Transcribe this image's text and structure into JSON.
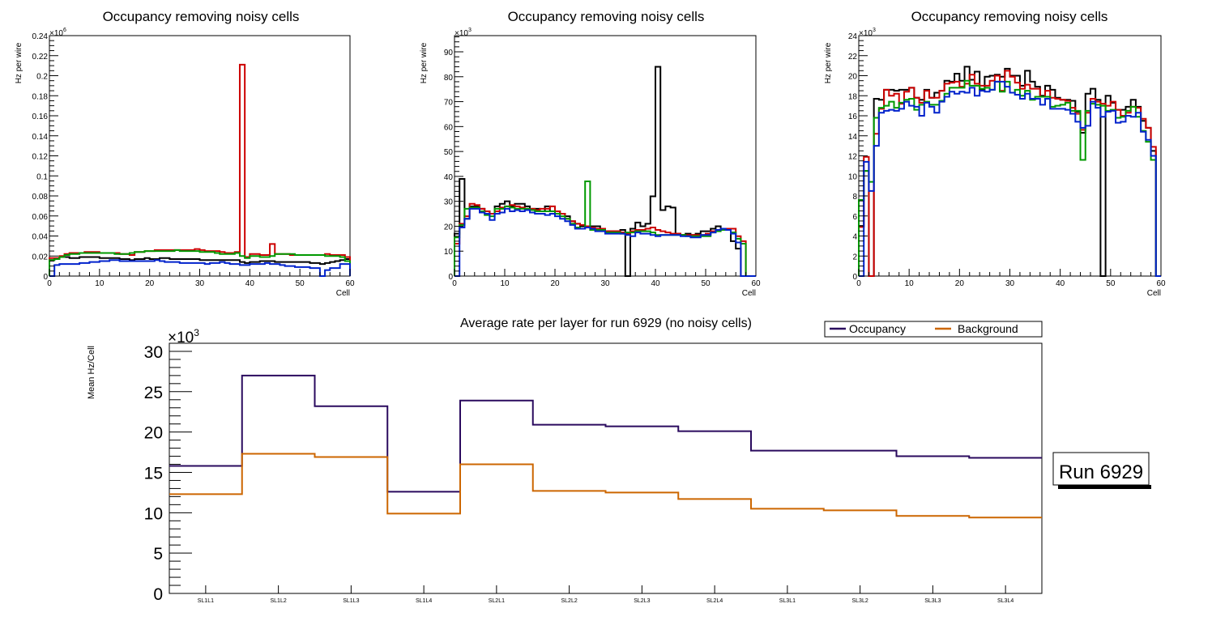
{
  "chart_data": [
    {
      "type": "bar",
      "histtype": "step",
      "title": "Occupancy removing noisy cells",
      "xlabel": "Cell",
      "ylabel": "Hz per wire",
      "yexponent": "×10^6",
      "xlim": [
        0,
        60
      ],
      "ylim": [
        0,
        0.24
      ],
      "xticks": [
        "0",
        "10",
        "20",
        "30",
        "40",
        "50",
        "60"
      ],
      "yticks": [
        "0",
        "0.02",
        "0.04",
        "0.06",
        "0.08",
        "0.1",
        "0.12",
        "0.14",
        "0.16",
        "0.18",
        "0.2",
        "0.22",
        "0.24"
      ],
      "ytick_values": [
        0,
        0.02,
        0.04,
        0.06,
        0.08,
        0.1,
        0.12,
        0.14,
        0.16,
        0.18,
        0.2,
        0.22,
        0.24
      ],
      "series": [
        {
          "name": "black",
          "color": "#000000",
          "values": [
            0.016,
            0.017,
            0.019,
            0.019,
            0.018,
            0.018,
            0.019,
            0.019,
            0.019,
            0.019,
            0.018,
            0.018,
            0.018,
            0.018,
            0.017,
            0.017,
            0.016,
            0.017,
            0.017,
            0.018,
            0.017,
            0.017,
            0.018,
            0.018,
            0.017,
            0.017,
            0.017,
            0.017,
            0.017,
            0.017,
            0.016,
            0.016,
            0.016,
            0.016,
            0.016,
            0.016,
            0.016,
            0.016,
            0.014,
            0.013,
            0.014,
            0.014,
            0.015,
            0.015,
            0.015,
            0.014,
            0.014,
            0.014,
            0.014,
            0.014,
            0.014,
            0.014,
            0.013,
            0.013,
            0.012,
            0.013,
            0.014,
            0.015,
            0.016,
            0.017
          ]
        },
        {
          "name": "red",
          "color": "#cc0000",
          "values": [
            0.018,
            0.018,
            0.02,
            0.022,
            0.023,
            0.023,
            0.023,
            0.024,
            0.024,
            0.024,
            0.023,
            0.023,
            0.023,
            0.023,
            0.022,
            0.022,
            0.021,
            0.024,
            0.024,
            0.025,
            0.025,
            0.026,
            0.026,
            0.026,
            0.026,
            0.026,
            0.026,
            0.026,
            0.026,
            0.027,
            0.026,
            0.025,
            0.025,
            0.025,
            0.024,
            0.023,
            0.023,
            0.024,
            0.211,
            0.019,
            0.022,
            0.022,
            0.021,
            0.021,
            0.032,
            0.022,
            0.022,
            0.022,
            0.021,
            0.021,
            0.021,
            0.021,
            0.021,
            0.021,
            0.021,
            0.022,
            0.021,
            0.021,
            0.021,
            0.019
          ]
        },
        {
          "name": "green",
          "color": "#009900",
          "values": [
            0.016,
            0.017,
            0.019,
            0.021,
            0.022,
            0.022,
            0.023,
            0.023,
            0.023,
            0.023,
            0.023,
            0.023,
            0.023,
            0.022,
            0.022,
            0.022,
            0.023,
            0.024,
            0.024,
            0.025,
            0.025,
            0.025,
            0.025,
            0.025,
            0.025,
            0.026,
            0.025,
            0.025,
            0.025,
            0.025,
            0.024,
            0.024,
            0.024,
            0.023,
            0.022,
            0.022,
            0.022,
            0.023,
            0.02,
            0.018,
            0.02,
            0.02,
            0.019,
            0.019,
            0.02,
            0.022,
            0.022,
            0.022,
            0.022,
            0.021,
            0.021,
            0.021,
            0.021,
            0.021,
            0.021,
            0.02,
            0.02,
            0.02,
            0.019,
            0.015
          ]
        },
        {
          "name": "blue",
          "color": "#0022cc",
          "values": [
            0.0,
            0.011,
            0.012,
            0.012,
            0.012,
            0.012,
            0.013,
            0.013,
            0.014,
            0.014,
            0.015,
            0.015,
            0.016,
            0.016,
            0.015,
            0.015,
            0.015,
            0.015,
            0.015,
            0.015,
            0.015,
            0.016,
            0.015,
            0.014,
            0.014,
            0.014,
            0.013,
            0.013,
            0.013,
            0.013,
            0.013,
            0.012,
            0.013,
            0.013,
            0.014,
            0.013,
            0.012,
            0.012,
            0.011,
            0.011,
            0.012,
            0.012,
            0.012,
            0.013,
            0.012,
            0.012,
            0.011,
            0.01,
            0.01,
            0.009,
            0.009,
            0.009,
            0.008,
            0.008,
            0.0,
            0.006,
            0.008,
            0.008,
            0.012,
            0.012
          ]
        }
      ]
    },
    {
      "type": "bar",
      "histtype": "step",
      "title": "Occupancy removing noisy cells",
      "xlabel": "Cell",
      "ylabel": "Hz per wire",
      "yexponent": "×10^3",
      "xlim": [
        0,
        60
      ],
      "ylim": [
        0,
        96.5
      ],
      "xticks": [
        "0",
        "10",
        "20",
        "30",
        "40",
        "50",
        "60"
      ],
      "yticks": [
        "0",
        "10",
        "20",
        "30",
        "40",
        "50",
        "60",
        "70",
        "80",
        "90"
      ],
      "ytick_values": [
        0,
        10,
        20,
        30,
        40,
        50,
        60,
        70,
        80,
        90
      ],
      "series": [
        {
          "name": "black",
          "color": "#000000",
          "values": [
            17,
            39,
            23,
            28,
            28,
            27,
            26,
            25,
            28,
            29,
            30,
            28,
            29,
            29,
            28,
            27,
            27,
            26,
            28,
            26,
            26,
            25,
            24,
            22,
            21,
            20,
            20,
            20,
            20,
            19,
            18,
            18,
            18,
            18.5,
            0,
            19,
            21.5,
            20,
            21,
            32,
            84,
            26.5,
            28,
            27.5,
            17,
            16.5,
            17,
            16.5,
            17,
            18,
            18,
            19,
            20,
            19,
            18.5,
            14,
            11,
            0,
            0,
            0
          ]
        },
        {
          "name": "red",
          "color": "#cc0000",
          "values": [
            13,
            21,
            24,
            29,
            28.5,
            27,
            26,
            25,
            26,
            27.5,
            28,
            28.5,
            28,
            27.5,
            27,
            27,
            26.5,
            27,
            27,
            28,
            26,
            25,
            23,
            22,
            21,
            20.5,
            20,
            19.5,
            19,
            19,
            18,
            18,
            18,
            17.5,
            17,
            18,
            18.5,
            18.5,
            19,
            19.5,
            18.5,
            18,
            17.5,
            17,
            17,
            16.5,
            16.5,
            16.5,
            16.5,
            16.5,
            17,
            18,
            18.5,
            19,
            19,
            19,
            16,
            14,
            0,
            0
          ]
        },
        {
          "name": "green",
          "color": "#009900",
          "values": [
            15.5,
            20.5,
            27,
            27.5,
            27.5,
            26,
            24.5,
            24,
            27,
            27,
            28,
            27.5,
            27,
            27,
            27,
            26.5,
            26,
            26,
            26,
            26,
            25,
            24,
            23,
            21,
            19.5,
            19,
            38,
            18.5,
            18.5,
            18.5,
            17.5,
            17.5,
            17.5,
            17,
            17.5,
            17.5,
            18,
            18,
            18,
            17.5,
            16.5,
            16.5,
            16.5,
            16.5,
            16.5,
            16.5,
            16,
            16,
            16,
            16,
            16,
            17.5,
            18,
            18.5,
            18.5,
            17.5,
            15,
            13,
            0,
            0
          ]
        },
        {
          "name": "blue",
          "color": "#0022cc",
          "values": [
            0,
            19.5,
            23,
            27,
            27,
            25.5,
            25,
            22.5,
            25,
            25.5,
            27,
            26,
            26.5,
            26,
            26.5,
            25.5,
            25,
            25,
            24.5,
            25,
            24,
            23,
            22,
            20.5,
            19,
            19,
            19.5,
            19,
            18,
            18,
            17,
            17,
            17,
            17,
            16.5,
            16,
            17.5,
            17,
            17,
            16.5,
            16,
            16.5,
            16.5,
            16.5,
            16.5,
            16,
            16,
            15.5,
            15.5,
            16.5,
            16.5,
            17.5,
            18.5,
            19,
            18.5,
            17,
            13.5,
            0,
            0,
            0
          ]
        }
      ]
    },
    {
      "type": "bar",
      "histtype": "step",
      "title": "Occupancy removing noisy cells",
      "xlabel": "Cell",
      "ylabel": "Hz per wire",
      "yexponent": "×10^3",
      "xlim": [
        0,
        60
      ],
      "ylim": [
        0,
        24
      ],
      "xticks": [
        "0",
        "10",
        "20",
        "30",
        "40",
        "50",
        "60"
      ],
      "yticks": [
        "0",
        "2",
        "4",
        "6",
        "8",
        "10",
        "12",
        "14",
        "16",
        "18",
        "20",
        "22",
        "24"
      ],
      "ytick_values": [
        0,
        2,
        4,
        6,
        8,
        10,
        12,
        14,
        16,
        18,
        20,
        22,
        24
      ],
      "series": [
        {
          "name": "black",
          "color": "#000000",
          "values": [
            5,
            10.5,
            0,
            17.7,
            17.6,
            18.6,
            18.6,
            18.5,
            18.6,
            18.6,
            18.8,
            17.8,
            17.6,
            18.6,
            17.8,
            18.3,
            18.5,
            19.5,
            19.4,
            20.2,
            19.5,
            20.9,
            19.6,
            20.4,
            18.6,
            19.9,
            20.0,
            20.1,
            19.9,
            20.7,
            20.0,
            20.0,
            19.0,
            20.5,
            19.4,
            18.9,
            18.0,
            19.0,
            18.6,
            17.8,
            17.6,
            17.6,
            17.5,
            16.4,
            14.3,
            18.2,
            18.7,
            17.6,
            0,
            18.0,
            17.3,
            16.6,
            16.6,
            16.9,
            17.6,
            16.9,
            15.5,
            14.8,
            12.5,
            0
          ]
        },
        {
          "name": "red",
          "color": "#cc0000",
          "values": [
            4.9,
            11.9,
            0,
            14.2,
            16.7,
            18.6,
            18.0,
            18.2,
            17.2,
            18.4,
            18.8,
            17.8,
            17.3,
            18.5,
            17.8,
            17.8,
            18.5,
            19.2,
            19.3,
            19.4,
            18.9,
            19.2,
            20.1,
            19.2,
            19.0,
            19.0,
            19.5,
            20.0,
            18.5,
            20.5,
            19.9,
            19.3,
            18.7,
            19.1,
            18.7,
            18.7,
            17.9,
            18.5,
            17.8,
            17.7,
            17.6,
            17.5,
            16.8,
            16.2,
            14.6,
            16.3,
            17.7,
            17.4,
            17.2,
            17.0,
            17.4,
            16.6,
            16.0,
            16.3,
            16.9,
            16.8,
            15.7,
            14.8,
            12.9,
            0
          ]
        },
        {
          "name": "green",
          "color": "#009900",
          "values": [
            7.6,
            10.5,
            9.4,
            15.8,
            16.8,
            17.0,
            17.4,
            16.8,
            17.3,
            17.6,
            17.7,
            16.6,
            17.1,
            17.4,
            17.1,
            17.1,
            17.5,
            18.2,
            18.8,
            18.8,
            18.8,
            19.5,
            19.0,
            19.0,
            18.7,
            18.8,
            18.6,
            19.4,
            18.4,
            19.4,
            18.3,
            18.6,
            18.0,
            18.5,
            17.6,
            17.9,
            17.9,
            17.9,
            16.9,
            17.0,
            17.1,
            17.3,
            16.5,
            16.5,
            11.6,
            16.5,
            17.2,
            17.1,
            17.0,
            16.5,
            16.6,
            15.8,
            15.9,
            16.5,
            16.9,
            15.9,
            14.5,
            13.4,
            11.6,
            0
          ]
        },
        {
          "name": "blue",
          "color": "#0022cc",
          "values": [
            0,
            11.4,
            8.5,
            13.0,
            16.3,
            16.5,
            16.6,
            16.5,
            16.7,
            17.4,
            17.0,
            16.9,
            16.0,
            17.3,
            16.9,
            16.3,
            17.4,
            17.9,
            18.4,
            18.2,
            18.4,
            18.3,
            18.8,
            18.0,
            18.5,
            18.4,
            18.6,
            19.4,
            19.4,
            18.9,
            18.3,
            18.1,
            17.7,
            18.2,
            17.7,
            17.7,
            17.1,
            17.7,
            16.7,
            16.7,
            16.7,
            16.6,
            16.2,
            15.4,
            14.8,
            15.0,
            17.4,
            16.8,
            15.9,
            16.4,
            16.5,
            15.3,
            15.4,
            16.0,
            15.9,
            16.3,
            14.4,
            13.6,
            12.0,
            0
          ]
        }
      ]
    },
    {
      "type": "bar",
      "histtype": "step",
      "title": "Average rate per layer for run 6929 (no noisy cells)",
      "xlabel": "",
      "ylabel": "Mean Hz/Cell",
      "yexponent": "×10^3",
      "ylim": [
        0,
        31
      ],
      "categories": [
        "SL1L1",
        "SL1L2",
        "SL1L3",
        "SL1L4",
        "SL2L1",
        "SL2L2",
        "SL2L3",
        "SL2L4",
        "SL3L1",
        "SL3L2",
        "SL3L3",
        "SL3L4"
      ],
      "yticks": [
        "0",
        "5",
        "10",
        "15",
        "20",
        "25",
        "30"
      ],
      "ytick_values": [
        0,
        5,
        10,
        15,
        20,
        25,
        30
      ],
      "legend": {
        "position": "top-right",
        "entries": [
          "Occupancy",
          "Background"
        ]
      },
      "series": [
        {
          "name": "Occupancy",
          "color": "#2a0a5e",
          "values": [
            15.8,
            27.0,
            23.2,
            12.6,
            23.9,
            20.9,
            20.7,
            20.1,
            17.7,
            17.7,
            17.0,
            16.8
          ]
        },
        {
          "name": "Background",
          "color": "#cc6600",
          "values": [
            12.3,
            17.3,
            16.9,
            9.9,
            16.0,
            12.7,
            12.5,
            11.7,
            10.5,
            10.3,
            9.6,
            9.4
          ]
        }
      ]
    }
  ],
  "run_label": "Run 6929"
}
